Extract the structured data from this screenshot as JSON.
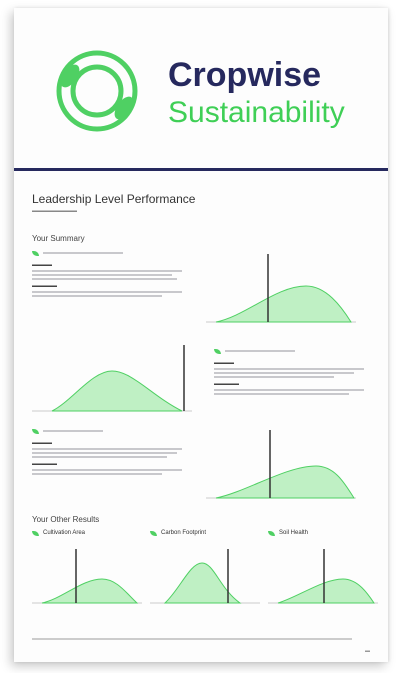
{
  "brand": {
    "name": "Cropwise",
    "product": "Sustainability"
  },
  "report": {
    "title": "Leadership Level Performance"
  },
  "summary": {
    "heading": "Your Summary"
  },
  "other": {
    "heading": "Your Other Results",
    "items": [
      "Cultivation Area",
      "Carbon Footprint",
      "Soil Health"
    ]
  },
  "colors": {
    "navy": "#26295e",
    "green": "#3fcf56",
    "area": "#bff0c4"
  }
}
